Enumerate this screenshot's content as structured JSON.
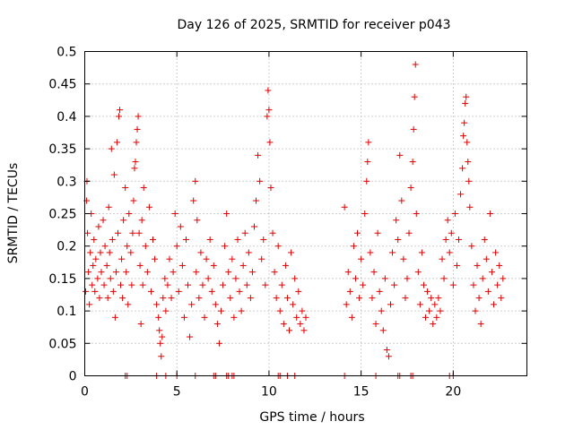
{
  "chart_data": {
    "type": "scatter",
    "title": "Day 126 of 2025, SRMTID for receiver p043",
    "xlabel": "GPS time / hours",
    "ylabel": "SRMTID / TECUs",
    "xlim": [
      0,
      24
    ],
    "ylim": [
      0,
      0.5
    ],
    "x_ticks": [
      "0",
      "5",
      "10",
      "15",
      "20"
    ],
    "y_ticks": [
      "0",
      "0.05",
      "0.1",
      "0.15",
      "0.2",
      "0.25",
      "0.3",
      "0.35",
      "0.4",
      "0.45",
      "0.5"
    ],
    "grid": true,
    "marker": "+",
    "marker_color": "#e00000",
    "series": [
      {
        "name": "SRMTID",
        "note": "dense scatter; representative points listed",
        "points": [
          [
            0.05,
            0.13
          ],
          [
            0.1,
            0.27
          ],
          [
            0.12,
            0.3
          ],
          [
            0.15,
            0.22
          ],
          [
            0.2,
            0.16
          ],
          [
            0.25,
            0.11
          ],
          [
            0.3,
            0.19
          ],
          [
            0.35,
            0.25
          ],
          [
            0.4,
            0.14
          ],
          [
            0.45,
            0.17
          ],
          [
            0.5,
            0.21
          ],
          [
            0.55,
            0.13
          ],
          [
            0.6,
            0.18
          ],
          [
            0.7,
            0.15
          ],
          [
            0.75,
            0.23
          ],
          [
            0.8,
            0.12
          ],
          [
            0.85,
            0.19
          ],
          [
            0.9,
            0.16
          ],
          [
            1.0,
            0.24
          ],
          [
            1.05,
            0.14
          ],
          [
            1.1,
            0.2
          ],
          [
            1.2,
            0.17
          ],
          [
            1.25,
            0.12
          ],
          [
            1.3,
            0.26
          ],
          [
            1.35,
            0.19
          ],
          [
            1.4,
            0.15
          ],
          [
            1.45,
            0.35
          ],
          [
            1.5,
            0.21
          ],
          [
            1.55,
            0.13
          ],
          [
            1.6,
            0.31
          ],
          [
            1.65,
            0.09
          ],
          [
            1.7,
            0.16
          ],
          [
            1.75,
            0.36
          ],
          [
            1.8,
            0.22
          ],
          [
            1.85,
            0.4
          ],
          [
            1.9,
            0.41
          ],
          [
            1.95,
            0.14
          ],
          [
            2.0,
            0.18
          ],
          [
            2.05,
            0.12
          ],
          [
            2.1,
            0.24
          ],
          [
            2.2,
            0.29
          ],
          [
            2.25,
            0.16
          ],
          [
            2.3,
            0.2
          ],
          [
            2.35,
            0.11
          ],
          [
            2.4,
            0.25
          ],
          [
            2.5,
            0.19
          ],
          [
            2.55,
            0.14
          ],
          [
            2.6,
            0.22
          ],
          [
            2.65,
            0.27
          ],
          [
            2.7,
            0.32
          ],
          [
            2.75,
            0.33
          ],
          [
            2.8,
            0.36
          ],
          [
            2.85,
            0.38
          ],
          [
            2.9,
            0.4
          ],
          [
            2.95,
            0.22
          ],
          [
            3.0,
            0.17
          ],
          [
            3.05,
            0.08
          ],
          [
            3.1,
            0.24
          ],
          [
            3.15,
            0.14
          ],
          [
            3.2,
            0.29
          ],
          [
            3.3,
            0.2
          ],
          [
            3.4,
            0.16
          ],
          [
            3.5,
            0.26
          ],
          [
            3.6,
            0.13
          ],
          [
            3.7,
            0.21
          ],
          [
            3.8,
            0.18
          ],
          [
            3.9,
            0.11
          ],
          [
            4.0,
            0.09
          ],
          [
            4.05,
            0.07
          ],
          [
            4.1,
            0.05
          ],
          [
            4.15,
            0.03
          ],
          [
            4.2,
            0.06
          ],
          [
            4.25,
            0.12
          ],
          [
            4.35,
            0.15
          ],
          [
            4.4,
            0.1
          ],
          [
            4.5,
            0.14
          ],
          [
            4.6,
            0.18
          ],
          [
            4.7,
            0.12
          ],
          [
            4.8,
            0.16
          ],
          [
            4.9,
            0.25
          ],
          [
            5.0,
            0.2
          ],
          [
            5.1,
            0.13
          ],
          [
            5.2,
            0.23
          ],
          [
            5.3,
            0.17
          ],
          [
            5.4,
            0.09
          ],
          [
            5.5,
            0.21
          ],
          [
            5.6,
            0.14
          ],
          [
            5.7,
            0.06
          ],
          [
            5.8,
            0.11
          ],
          [
            5.9,
            0.27
          ],
          [
            6.0,
            0.3
          ],
          [
            6.05,
            0.16
          ],
          [
            6.1,
            0.24
          ],
          [
            6.2,
            0.12
          ],
          [
            6.3,
            0.19
          ],
          [
            6.4,
            0.14
          ],
          [
            6.5,
            0.09
          ],
          [
            6.6,
            0.18
          ],
          [
            6.7,
            0.15
          ],
          [
            6.8,
            0.21
          ],
          [
            6.9,
            0.13
          ],
          [
            7.0,
            0.17
          ],
          [
            7.1,
            0.11
          ],
          [
            7.2,
            0.08
          ],
          [
            7.3,
            0.05
          ],
          [
            7.4,
            0.1
          ],
          [
            7.5,
            0.14
          ],
          [
            7.6,
            0.2
          ],
          [
            7.7,
            0.25
          ],
          [
            7.8,
            0.16
          ],
          [
            7.9,
            0.12
          ],
          [
            8.0,
            0.18
          ],
          [
            8.1,
            0.09
          ],
          [
            8.2,
            0.15
          ],
          [
            8.3,
            0.21
          ],
          [
            8.4,
            0.13
          ],
          [
            8.5,
            0.1
          ],
          [
            8.6,
            0.17
          ],
          [
            8.7,
            0.22
          ],
          [
            8.8,
            0.14
          ],
          [
            8.9,
            0.19
          ],
          [
            9.0,
            0.12
          ],
          [
            9.1,
            0.16
          ],
          [
            9.2,
            0.23
          ],
          [
            9.3,
            0.27
          ],
          [
            9.4,
            0.34
          ],
          [
            9.5,
            0.3
          ],
          [
            9.6,
            0.18
          ],
          [
            9.7,
            0.21
          ],
          [
            9.8,
            0.14
          ],
          [
            9.9,
            0.4
          ],
          [
            9.95,
            0.44
          ],
          [
            10.0,
            0.41
          ],
          [
            10.05,
            0.36
          ],
          [
            10.1,
            0.29
          ],
          [
            10.2,
            0.22
          ],
          [
            10.3,
            0.16
          ],
          [
            10.4,
            0.12
          ],
          [
            10.5,
            0.2
          ],
          [
            10.6,
            0.1
          ],
          [
            10.7,
            0.14
          ],
          [
            10.8,
            0.08
          ],
          [
            10.9,
            0.17
          ],
          [
            11.0,
            0.12
          ],
          [
            11.1,
            0.07
          ],
          [
            11.2,
            0.19
          ],
          [
            11.3,
            0.11
          ],
          [
            11.4,
            0.15
          ],
          [
            11.5,
            0.09
          ],
          [
            11.6,
            0.13
          ],
          [
            11.7,
            0.08
          ],
          [
            11.8,
            0.1
          ],
          [
            11.9,
            0.07
          ],
          [
            12.0,
            0.09
          ],
          [
            14.1,
            0.26
          ],
          [
            14.2,
            0.11
          ],
          [
            14.3,
            0.16
          ],
          [
            14.4,
            0.13
          ],
          [
            14.5,
            0.09
          ],
          [
            14.6,
            0.2
          ],
          [
            14.7,
            0.15
          ],
          [
            14.8,
            0.22
          ],
          [
            14.9,
            0.12
          ],
          [
            15.0,
            0.18
          ],
          [
            15.1,
            0.14
          ],
          [
            15.2,
            0.25
          ],
          [
            15.3,
            0.3
          ],
          [
            15.35,
            0.33
          ],
          [
            15.4,
            0.36
          ],
          [
            15.5,
            0.19
          ],
          [
            15.6,
            0.12
          ],
          [
            15.7,
            0.16
          ],
          [
            15.8,
            0.08
          ],
          [
            15.9,
            0.22
          ],
          [
            16.0,
            0.13
          ],
          [
            16.1,
            0.1
          ],
          [
            16.2,
            0.07
          ],
          [
            16.3,
            0.15
          ],
          [
            16.4,
            0.04
          ],
          [
            16.5,
            0.03
          ],
          [
            16.6,
            0.11
          ],
          [
            16.7,
            0.19
          ],
          [
            16.8,
            0.14
          ],
          [
            16.9,
            0.24
          ],
          [
            17.0,
            0.21
          ],
          [
            17.1,
            0.34
          ],
          [
            17.2,
            0.27
          ],
          [
            17.3,
            0.18
          ],
          [
            17.4,
            0.12
          ],
          [
            17.5,
            0.15
          ],
          [
            17.6,
            0.22
          ],
          [
            17.7,
            0.29
          ],
          [
            17.8,
            0.33
          ],
          [
            17.85,
            0.38
          ],
          [
            17.9,
            0.43
          ],
          [
            17.95,
            0.48
          ],
          [
            18.0,
            0.25
          ],
          [
            18.1,
            0.16
          ],
          [
            18.2,
            0.11
          ],
          [
            18.3,
            0.19
          ],
          [
            18.4,
            0.14
          ],
          [
            18.5,
            0.09
          ],
          [
            18.6,
            0.13
          ],
          [
            18.7,
            0.1
          ],
          [
            18.8,
            0.12
          ],
          [
            18.9,
            0.08
          ],
          [
            19.0,
            0.11
          ],
          [
            19.1,
            0.09
          ],
          [
            19.2,
            0.12
          ],
          [
            19.3,
            0.1
          ],
          [
            19.4,
            0.18
          ],
          [
            19.5,
            0.15
          ],
          [
            19.6,
            0.21
          ],
          [
            19.7,
            0.24
          ],
          [
            19.8,
            0.19
          ],
          [
            19.9,
            0.22
          ],
          [
            20.0,
            0.14
          ],
          [
            20.1,
            0.25
          ],
          [
            20.2,
            0.17
          ],
          [
            20.3,
            0.21
          ],
          [
            20.4,
            0.28
          ],
          [
            20.5,
            0.32
          ],
          [
            20.55,
            0.37
          ],
          [
            20.6,
            0.39
          ],
          [
            20.65,
            0.42
          ],
          [
            20.7,
            0.43
          ],
          [
            20.75,
            0.36
          ],
          [
            20.8,
            0.33
          ],
          [
            20.85,
            0.3
          ],
          [
            20.9,
            0.26
          ],
          [
            21.0,
            0.2
          ],
          [
            21.1,
            0.14
          ],
          [
            21.2,
            0.1
          ],
          [
            21.3,
            0.17
          ],
          [
            21.4,
            0.12
          ],
          [
            21.5,
            0.08
          ],
          [
            21.6,
            0.15
          ],
          [
            21.7,
            0.21
          ],
          [
            21.8,
            0.18
          ],
          [
            21.9,
            0.13
          ],
          [
            22.0,
            0.25
          ],
          [
            22.1,
            0.16
          ],
          [
            22.2,
            0.11
          ],
          [
            22.3,
            0.19
          ],
          [
            22.4,
            0.14
          ],
          [
            22.5,
            0.17
          ],
          [
            22.6,
            0.12
          ],
          [
            22.7,
            0.15
          ]
        ],
        "zero_points": [
          2.2,
          2.3,
          3.9,
          4.4,
          5.0,
          6.0,
          7.0,
          7.1,
          7.7,
          7.8,
          8.0,
          8.1,
          10.5,
          10.6,
          11.0,
          11.4,
          14.1,
          15.8,
          17.0,
          17.1,
          17.7,
          17.8,
          19.8,
          20.0
        ]
      }
    ]
  }
}
